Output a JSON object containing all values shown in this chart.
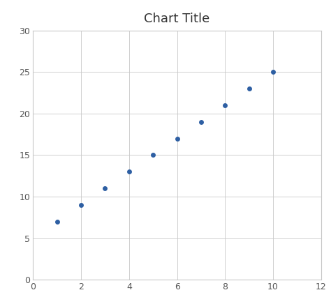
{
  "title": "Chart Title",
  "x": [
    1,
    2,
    3,
    4,
    5,
    6,
    7,
    8,
    9,
    10
  ],
  "y": [
    7,
    9,
    11,
    13,
    15,
    17,
    19,
    21,
    23,
    25
  ],
  "xlim": [
    0,
    12
  ],
  "ylim": [
    0,
    30
  ],
  "xticks": [
    0,
    2,
    4,
    6,
    8,
    10,
    12
  ],
  "yticks": [
    0,
    5,
    10,
    15,
    20,
    25,
    30
  ],
  "marker_color": "#2E5FA3",
  "marker_size": 5,
  "grid_color": "#C8C8C8",
  "background_color": "#FFFFFF",
  "title_fontsize": 13,
  "title_color": "#333333",
  "tick_fontsize": 9,
  "tick_color": "#555555"
}
